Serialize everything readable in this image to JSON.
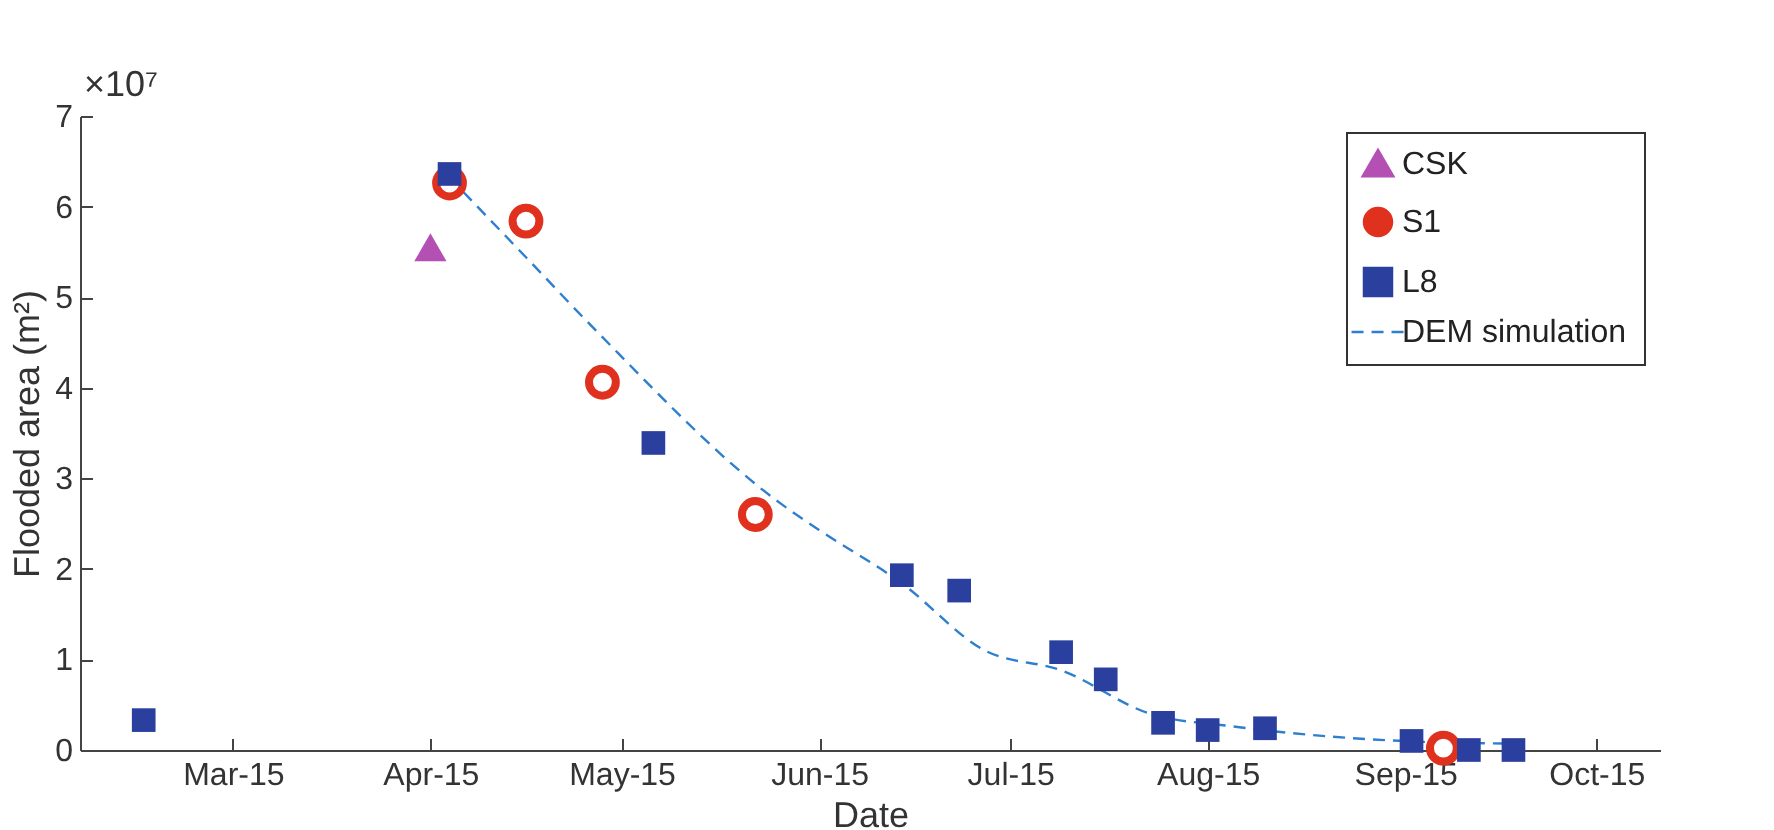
{
  "chart_data": {
    "type": "scatter",
    "xlabel": "Date",
    "ylabel": "Flooded area (m²)",
    "annotations": [
      "×10⁷"
    ],
    "xlim": [
      "2015-02-05",
      "2015-10-11"
    ],
    "xticks": [
      {
        "value": "2015-03-01",
        "label": "Mar-15"
      },
      {
        "value": "2015-04-01",
        "label": "Apr-15"
      },
      {
        "value": "2015-05-01",
        "label": "May-15"
      },
      {
        "value": "2015-06-01",
        "label": "Jun-15"
      },
      {
        "value": "2015-07-01",
        "label": "Jul-15"
      },
      {
        "value": "2015-08-01",
        "label": "Aug-15"
      },
      {
        "value": "2015-09-01",
        "label": "Sep-15"
      },
      {
        "value": "2015-10-01",
        "label": "Oct-15"
      }
    ],
    "ylim": [
      0,
      7
    ],
    "yticks": [
      0,
      1,
      2,
      3,
      4,
      5,
      6,
      7
    ],
    "grid": false,
    "legend": "top right",
    "series": [
      {
        "name": "CSK",
        "marker": "triangle",
        "color": "#b44fb4",
        "x": [
          "2015-04-01"
        ],
        "values": [
          5.55
        ]
      },
      {
        "name": "S1",
        "marker": "circle",
        "color": "#e0301e",
        "x": [
          "2015-04-04",
          "2015-04-16",
          "2015-04-28",
          "2015-05-22",
          "2015-09-07"
        ],
        "values": [
          6.26,
          5.84,
          4.06,
          2.6,
          0.02
        ]
      },
      {
        "name": "L8",
        "marker": "square",
        "color": "#2a3f9e",
        "x": [
          "2015-02-15",
          "2015-04-04",
          "2015-05-06",
          "2015-06-14",
          "2015-06-23",
          "2015-07-09",
          "2015-07-16",
          "2015-07-25",
          "2015-08-01",
          "2015-08-10",
          "2015-09-02",
          "2015-09-11",
          "2015-09-18"
        ],
        "values": [
          0.33,
          6.36,
          3.39,
          1.93,
          1.76,
          1.08,
          0.78,
          0.3,
          0.22,
          0.24,
          0.1,
          0,
          0
        ]
      },
      {
        "name": "DEM simulation",
        "type": "line",
        "line_style": "dashed",
        "color": "#2f7fcf",
        "x": [
          "2015-04-04",
          "2015-04-16",
          "2015-04-27",
          "2015-05-26",
          "2015-06-01",
          "2015-06-14",
          "2015-06-27",
          "2015-07-09",
          "2015-07-23",
          "2015-08-05",
          "2015-08-20",
          "2015-09-04",
          "2015-09-18"
        ],
        "values": [
          6.32,
          5.44,
          4.63,
          2.72,
          2.43,
          1.84,
          1.1,
          0.88,
          0.4,
          0.26,
          0.15,
          0.09,
          0.07
        ]
      }
    ]
  }
}
